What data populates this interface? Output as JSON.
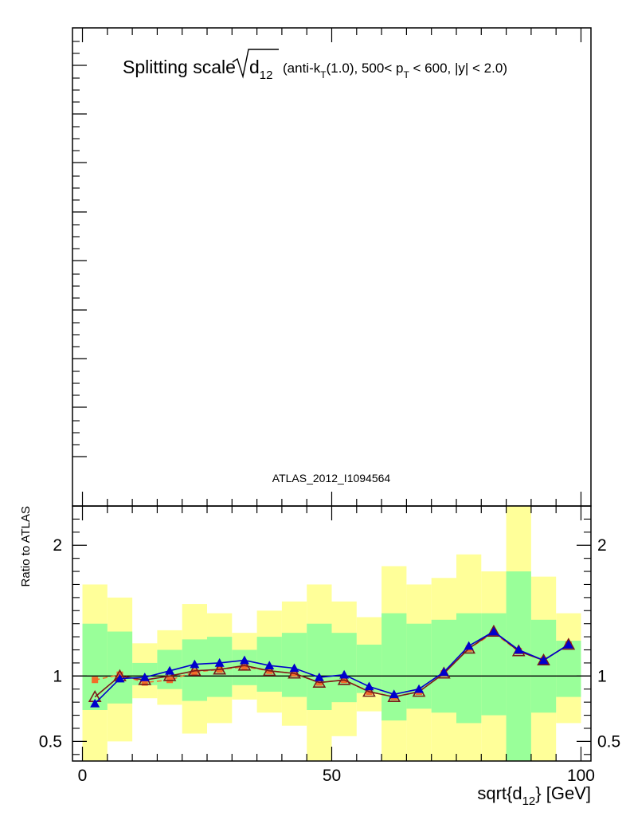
{
  "chart_data": {
    "type": "line",
    "title": {
      "prefix": "Splitting scale",
      "radicand": "d",
      "radicand_sub": "12",
      "part1": "(anti-k",
      "part1_sub": "T",
      "part2": "(1.0), 500< p",
      "part2_sub": "T",
      "part3": " < 600, |y| < 2.0)"
    },
    "annotation": "ATLAS_2012_I1094564",
    "xlabel": {
      "main": "sqrt{d",
      "sub": "12",
      "tail": "} [GeV]"
    },
    "ylabel": "Ratio to ATLAS",
    "xlim": [
      -2,
      102
    ],
    "ylim": [
      0.35,
      2.3
    ],
    "x_ticks": [
      {
        "value": 0,
        "label": "0"
      },
      {
        "value": 50,
        "label": "50"
      },
      {
        "value": 100,
        "label": "100"
      }
    ],
    "y_ticks": [
      {
        "value": 0.5,
        "label": "0.5"
      },
      {
        "value": 1,
        "label": "1"
      },
      {
        "value": 2,
        "label": "2"
      }
    ],
    "bins": [
      {
        "lo": 0,
        "hi": 5,
        "green": [
          0.74,
          1.4
        ],
        "yellow": [
          0.35,
          1.7
        ]
      },
      {
        "lo": 5,
        "hi": 10,
        "green": [
          0.79,
          1.34
        ],
        "yellow": [
          0.5,
          1.6
        ]
      },
      {
        "lo": 10,
        "hi": 15,
        "green": [
          0.93,
          1.1
        ],
        "yellow": [
          0.83,
          1.25
        ]
      },
      {
        "lo": 15,
        "hi": 20,
        "green": [
          0.9,
          1.2
        ],
        "yellow": [
          0.78,
          1.35
        ]
      },
      {
        "lo": 20,
        "hi": 25,
        "green": [
          0.81,
          1.28
        ],
        "yellow": [
          0.56,
          1.55
        ]
      },
      {
        "lo": 25,
        "hi": 30,
        "green": [
          0.84,
          1.3
        ],
        "yellow": [
          0.64,
          1.48
        ]
      },
      {
        "lo": 30,
        "hi": 35,
        "green": [
          0.93,
          1.2
        ],
        "yellow": [
          0.82,
          1.33
        ]
      },
      {
        "lo": 35,
        "hi": 40,
        "green": [
          0.88,
          1.3
        ],
        "yellow": [
          0.72,
          1.5
        ]
      },
      {
        "lo": 40,
        "hi": 45,
        "green": [
          0.84,
          1.33
        ],
        "yellow": [
          0.62,
          1.57
        ]
      },
      {
        "lo": 45,
        "hi": 50,
        "green": [
          0.74,
          1.4
        ],
        "yellow": [
          0.35,
          1.7
        ]
      },
      {
        "lo": 50,
        "hi": 55,
        "green": [
          0.8,
          1.33
        ],
        "yellow": [
          0.54,
          1.57
        ]
      },
      {
        "lo": 55,
        "hi": 60,
        "green": [
          0.87,
          1.24
        ],
        "yellow": [
          0.73,
          1.45
        ]
      },
      {
        "lo": 60,
        "hi": 65,
        "green": [
          0.66,
          1.48
        ],
        "yellow": [
          0.35,
          1.84
        ]
      },
      {
        "lo": 65,
        "hi": 70,
        "green": [
          0.75,
          1.4
        ],
        "yellow": [
          0.35,
          1.7
        ]
      },
      {
        "lo": 70,
        "hi": 75,
        "green": [
          0.72,
          1.43
        ],
        "yellow": [
          0.35,
          1.75
        ]
      },
      {
        "lo": 75,
        "hi": 80,
        "green": [
          0.64,
          1.48
        ],
        "yellow": [
          0.35,
          1.93
        ]
      },
      {
        "lo": 80,
        "hi": 85,
        "green": [
          0.7,
          1.48
        ],
        "yellow": [
          0.35,
          1.8
        ]
      },
      {
        "lo": 85,
        "hi": 90,
        "green": [
          0.35,
          1.8
        ],
        "yellow": [
          0.35,
          2.3
        ]
      },
      {
        "lo": 90,
        "hi": 95,
        "green": [
          0.72,
          1.43
        ],
        "yellow": [
          0.35,
          1.76
        ]
      },
      {
        "lo": 95,
        "hi": 100,
        "green": [
          0.84,
          1.27
        ],
        "yellow": [
          0.64,
          1.48
        ]
      }
    ],
    "series": [
      {
        "color": "#0000cc",
        "line": "solid",
        "marker": "triangle-filled",
        "x": [
          2.5,
          7.5,
          12.5,
          17.5,
          22.5,
          27.5,
          32.5,
          37.5,
          42.5,
          47.5,
          52.5,
          57.5,
          62.5,
          67.5,
          72.5,
          77.5,
          82.5,
          87.5,
          92.5,
          97.5
        ],
        "y": [
          0.79,
          0.98,
          0.99,
          1.04,
          1.09,
          1.1,
          1.12,
          1.08,
          1.06,
          0.99,
          1.01,
          0.92,
          0.86,
          0.9,
          1.03,
          1.23,
          1.34,
          1.2,
          1.12,
          1.24
        ]
      },
      {
        "color": "#7a1a1a",
        "line": "solid",
        "marker": "triangle-open",
        "x": [
          2.5,
          7.5,
          12.5,
          17.5,
          22.5,
          27.5,
          32.5,
          37.5,
          42.5,
          47.5,
          52.5,
          57.5,
          62.5,
          67.5,
          72.5,
          77.5,
          82.5,
          87.5,
          92.5,
          97.5
        ],
        "y": [
          0.84,
          1.0,
          0.97,
          1.0,
          1.04,
          1.05,
          1.08,
          1.04,
          1.02,
          0.95,
          0.97,
          0.88,
          0.84,
          0.88,
          1.02,
          1.21,
          1.34,
          1.19,
          1.12,
          1.24
        ]
      },
      {
        "color": "#f26c2a",
        "line": "dashed",
        "marker": "square",
        "x": [
          2.5,
          7.5,
          12.5,
          17.5,
          22.5,
          27.5,
          32.5,
          37.5,
          42.5,
          47.5,
          52.5,
          57.5,
          62.5,
          67.5,
          72.5,
          77.5,
          82.5,
          87.5,
          92.5,
          97.5
        ],
        "y": [
          0.97,
          1.01,
          0.95,
          0.97,
          1.03,
          1.05,
          1.07,
          1.04,
          1.02,
          0.95,
          0.97,
          0.88,
          0.84,
          0.88,
          1.02,
          1.21,
          1.33,
          1.19,
          1.12,
          1.24
        ]
      }
    ],
    "colors": {
      "yellow_band": "#ffff99",
      "green_band": "#99ff99",
      "axes": "#000000"
    }
  }
}
